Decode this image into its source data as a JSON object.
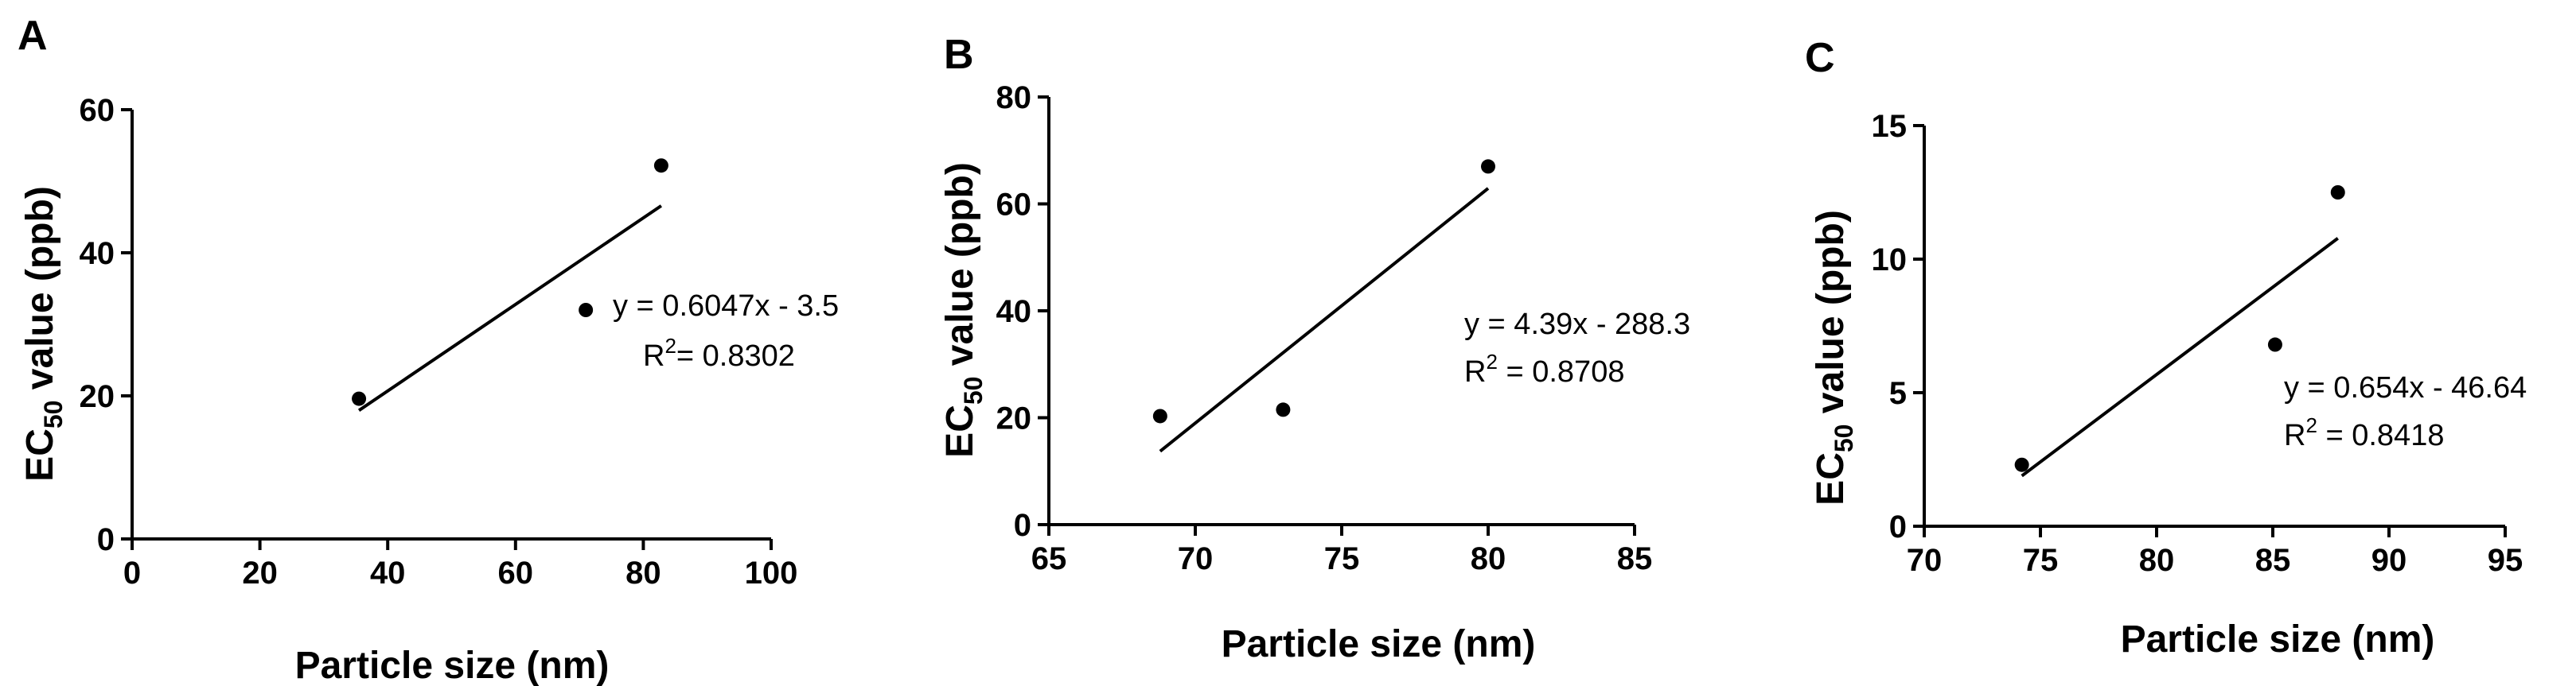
{
  "chart_data": [
    {
      "type": "scatter",
      "panel": "A",
      "xlabel": "Particle size (nm)",
      "ylabel_main": "EC",
      "ylabel_sub": "50",
      "ylabel_rest": " value (ppb)",
      "xlim": [
        0,
        100
      ],
      "ylim": [
        0,
        60
      ],
      "xticks": [
        0,
        20,
        40,
        60,
        80,
        100
      ],
      "yticks": [
        0,
        20,
        40,
        60
      ],
      "points": [
        {
          "x": 35.5,
          "y": 19.6
        },
        {
          "x": 71,
          "y": 32
        },
        {
          "x": 82.8,
          "y": 52.2
        }
      ],
      "fit": {
        "slope": 0.6047,
        "intercept": -3.5,
        "x_range": [
          35.5,
          82.8
        ]
      },
      "equation": "y = 0.6047x - 3.5",
      "r2_prefix": "R",
      "r2_sup": "2",
      "r2_value": "= 0.8302"
    },
    {
      "type": "scatter",
      "panel": "B",
      "xlabel": "Particle size (nm)",
      "ylabel_main": "EC",
      "ylabel_sub": "50",
      "ylabel_rest": " value (ppb)",
      "xlim": [
        65,
        85
      ],
      "ylim": [
        0,
        80
      ],
      "xticks": [
        65,
        70,
        75,
        80,
        85
      ],
      "yticks": [
        0,
        20,
        40,
        60,
        80
      ],
      "points": [
        {
          "x": 68.8,
          "y": 20.3
        },
        {
          "x": 73,
          "y": 21.5
        },
        {
          "x": 80,
          "y": 67
        }
      ],
      "fit": {
        "slope": 4.39,
        "intercept": -288.3,
        "x_range": [
          68.8,
          80
        ]
      },
      "equation": "y = 4.39x - 288.3",
      "r2_prefix": "R",
      "r2_sup": "2",
      "r2_value": " = 0.8708"
    },
    {
      "type": "scatter",
      "panel": "C",
      "xlabel": "Particle size (nm)",
      "ylabel_main": "EC",
      "ylabel_sub": "50",
      "ylabel_rest": " value (ppb)",
      "xlim": [
        70,
        95
      ],
      "ylim": [
        0,
        15
      ],
      "xticks": [
        70,
        75,
        80,
        85,
        90,
        95
      ],
      "yticks": [
        0,
        5,
        10,
        15
      ],
      "points": [
        {
          "x": 74.2,
          "y": 2.3
        },
        {
          "x": 85.1,
          "y": 6.8
        },
        {
          "x": 87.8,
          "y": 12.5
        }
      ],
      "fit": {
        "slope": 0.654,
        "intercept": -46.64,
        "x_range": [
          74.2,
          87.8
        ]
      },
      "equation": "y = 0.654x - 46.64",
      "r2_prefix": "R",
      "r2_sup": "2",
      "r2_value": " = 0.8418"
    }
  ]
}
